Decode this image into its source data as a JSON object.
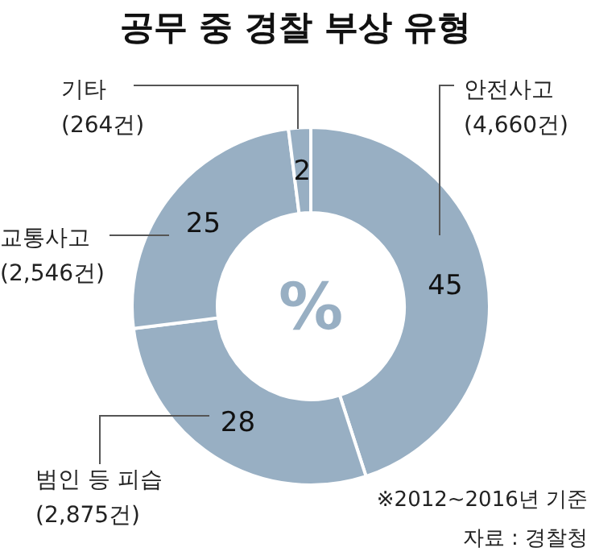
{
  "chart_data": {
    "type": "donut",
    "title": "공무 중 경찰 부상 유형",
    "categories": [
      "안전사고\n(4,660건)",
      "범인 등 피습\n(2,875건)",
      "교통사고\n(2,546건)",
      "기타\n(264건)"
    ],
    "values": [
      45,
      28,
      25,
      2
    ],
    "colors": [
      "#98afc3",
      "#98afc3",
      "#98afc3",
      "#98afc3"
    ],
    "data_labels": true,
    "annotations": [
      "%",
      "※2012~2016년 기준",
      "자료 : 경찰청"
    ]
  }
}
